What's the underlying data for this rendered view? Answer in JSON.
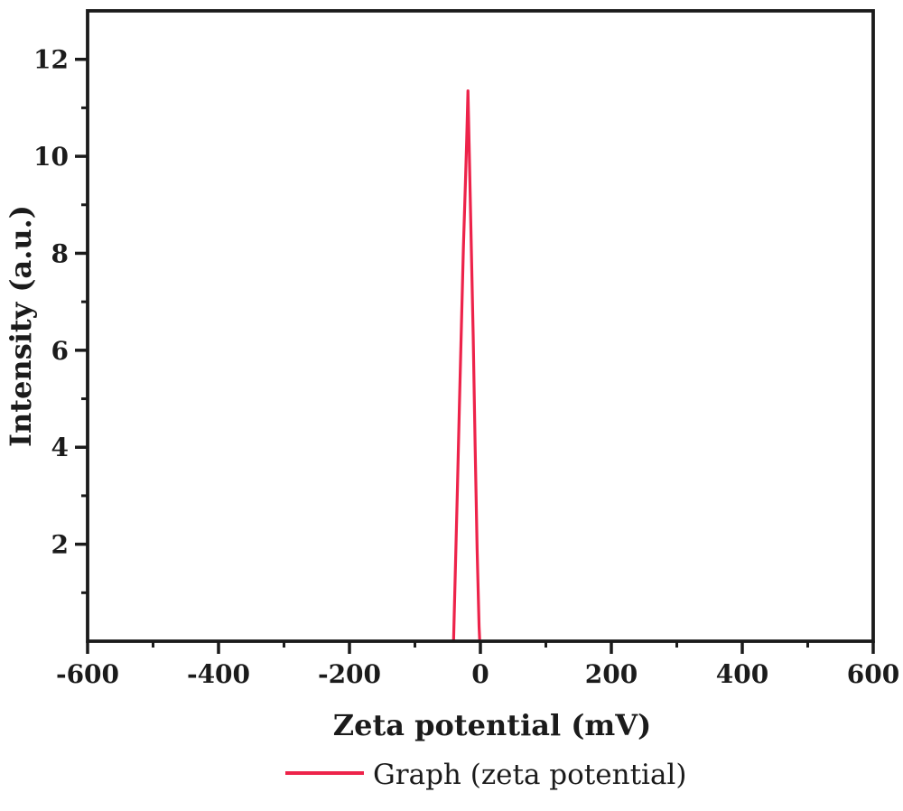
{
  "chart_data": {
    "type": "line",
    "title": "",
    "xlabel": "Zeta potential (mV)",
    "ylabel": "Intensity (a.u.)",
    "xlim": [
      -600,
      600
    ],
    "ylim": [
      0,
      13
    ],
    "x_major_ticks": [
      -600,
      -400,
      -200,
      0,
      200,
      400,
      600
    ],
    "x_minor_ticks": [
      -500,
      -300,
      -100,
      100,
      300,
      500
    ],
    "y_major_ticks": [
      2,
      4,
      6,
      8,
      10,
      12
    ],
    "y_minor_ticks": [
      1,
      3,
      5,
      7,
      9,
      11
    ],
    "grid": false,
    "frame": "full-box",
    "legend_position": "bottom-center",
    "series": [
      {
        "name": "Graph (zeta potential)",
        "color": "#ed234a",
        "x": [
          -41,
          -38,
          -35,
          -32,
          -29,
          -26,
          -23,
          -21,
          -19,
          -17,
          -14,
          -11,
          -8,
          -5,
          -2,
          -1
        ],
        "y": [
          0,
          1.6,
          3.2,
          4.9,
          6.5,
          8.1,
          9.4,
          10.3,
          11.35,
          10.1,
          8.2,
          6.3,
          4.0,
          1.9,
          0.3,
          0
        ]
      }
    ]
  },
  "colors": {
    "background": "#ffffff",
    "axis": "#1b1b1b",
    "text": "#1b1b1b",
    "series_red": "#ed234a"
  }
}
